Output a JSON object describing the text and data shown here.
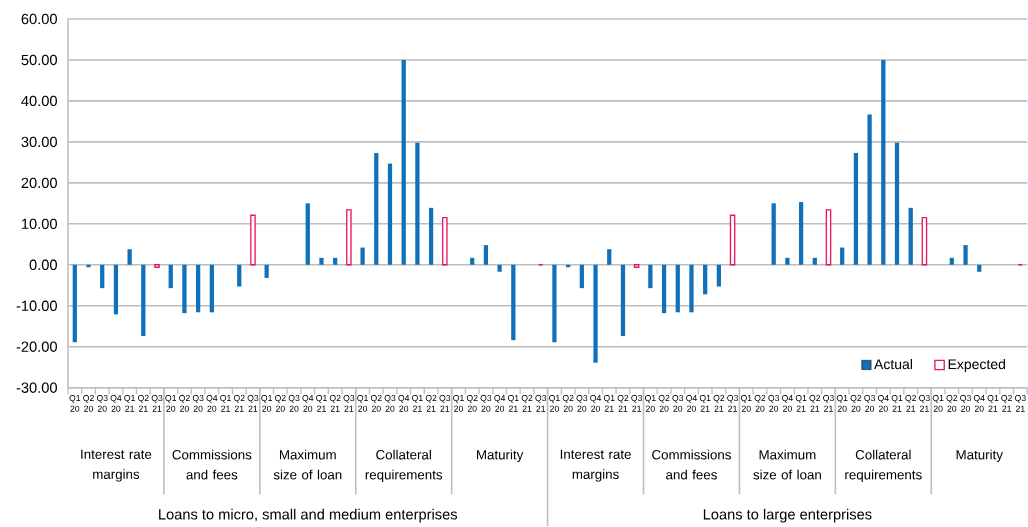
{
  "chart_data": {
    "type": "bar",
    "categories": [
      "Q1 20",
      "Q2 20",
      "Q3 20",
      "Q4 20",
      "Q1 21",
      "Q2 21",
      "Q3 21",
      "Q1 20",
      "Q2 20",
      "Q3 20",
      "Q4 20",
      "Q1 21",
      "Q2 21",
      "Q3 21",
      "Q1 20",
      "Q2 20",
      "Q3 20",
      "Q4 20",
      "Q1 21",
      "Q2 21",
      "Q3 21",
      "Q1 20",
      "Q2 20",
      "Q3 20",
      "Q4 20",
      "Q1 21",
      "Q2 21",
      "Q3 21",
      "Q1 20",
      "Q2 20",
      "Q3 20",
      "Q4 20",
      "Q1 21",
      "Q2 21",
      "Q3 21",
      "Q1 20",
      "Q2 20",
      "Q3 20",
      "Q4 20",
      "Q1 21",
      "Q2 21",
      "Q3 21",
      "Q1 20",
      "Q2 20",
      "Q3 20",
      "Q4 20",
      "Q1 21",
      "Q2 21",
      "Q3 21",
      "Q1 20",
      "Q2 20",
      "Q3 20",
      "Q4 20",
      "Q1 21",
      "Q2 21",
      "Q3 21",
      "Q1 20",
      "Q2 20",
      "Q3 20",
      "Q4 20",
      "Q1 21",
      "Q2 21",
      "Q3 21",
      "Q1 20",
      "Q2 20",
      "Q3 20",
      "Q4 20",
      "Q1 21",
      "Q2 21",
      "Q3 21"
    ],
    "series": [
      {
        "name": "Actual",
        "color": "#1070b8",
        "values": [
          -18.9,
          -0.6,
          -5.7,
          -12.1,
          3.8,
          -17.4,
          null,
          -5.7,
          -11.8,
          -11.6,
          -11.6,
          0,
          -5.3,
          null,
          -3.2,
          0,
          0,
          15.0,
          1.7,
          1.7,
          null,
          4.2,
          27.3,
          24.7,
          50.0,
          29.8,
          13.9,
          null,
          0,
          1.7,
          4.8,
          -1.7,
          -18.4,
          0,
          null,
          -18.9,
          -0.6,
          -5.7,
          -23.9,
          3.8,
          -17.4,
          null,
          -5.7,
          -11.8,
          -11.6,
          -11.6,
          -7.2,
          -5.3,
          null,
          0,
          0,
          15.0,
          1.7,
          15.3,
          1.7,
          null,
          4.2,
          27.3,
          36.7,
          50.0,
          29.8,
          13.9,
          null,
          0,
          1.7,
          4.8,
          -1.7,
          0,
          0,
          null
        ]
      },
      {
        "name": "Expected",
        "color": "#e8175d",
        "values": [
          null,
          null,
          null,
          null,
          null,
          null,
          -0.6,
          null,
          null,
          null,
          null,
          null,
          null,
          12.1,
          null,
          null,
          null,
          null,
          null,
          null,
          13.4,
          null,
          null,
          null,
          null,
          null,
          null,
          11.5,
          null,
          null,
          null,
          null,
          null,
          null,
          0,
          null,
          null,
          null,
          null,
          null,
          null,
          -0.6,
          null,
          null,
          null,
          null,
          null,
          null,
          12.1,
          null,
          null,
          null,
          null,
          null,
          null,
          13.4,
          null,
          null,
          null,
          null,
          null,
          null,
          11.5,
          null,
          null,
          null,
          null,
          null,
          null,
          0
        ]
      }
    ],
    "ylim": [
      -30,
      60
    ],
    "yticks": [
      {
        "value": -30,
        "label": "-30.00"
      },
      {
        "value": -20,
        "label": "-20.00"
      },
      {
        "value": -10,
        "label": "-10.00"
      },
      {
        "value": 0,
        "label": "0.00"
      },
      {
        "value": 10,
        "label": "10.00"
      },
      {
        "value": 20,
        "label": "20.00"
      },
      {
        "value": 30,
        "label": "30.00"
      },
      {
        "value": 40,
        "label": "40.00"
      },
      {
        "value": 50,
        "label": "50.00"
      },
      {
        "value": 60,
        "label": "60.00"
      }
    ],
    "grid": "y",
    "legend": "bottom right",
    "annotations": [
      "Interest rate margins",
      "Commissions and fees",
      "Maximum size of loan",
      "Collateral requirements",
      "Maturity",
      "Interest rate margins",
      "Commissions and fees",
      "Maximum size of loan",
      "Collateral requirements",
      "Maturity",
      "Loans to micro, small and medium enterprises",
      "Loans to large enterprises"
    ]
  }
}
